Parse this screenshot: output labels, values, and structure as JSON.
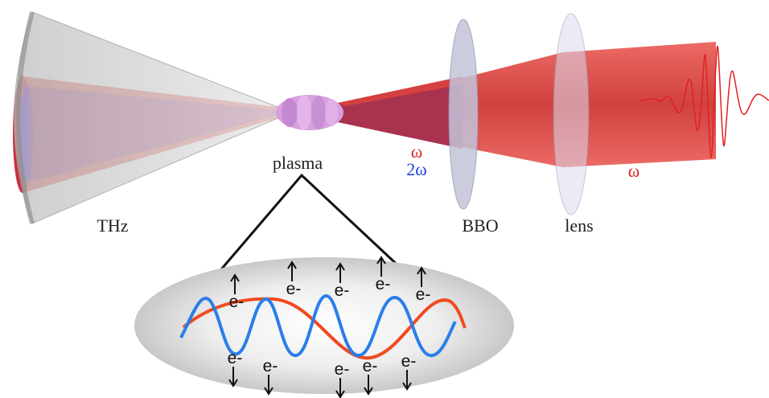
{
  "labels": {
    "thz": "THz",
    "plasma": "plasma",
    "omega_left": "ω",
    "two_omega": "2ω",
    "bbo": "BBO",
    "lens": "lens",
    "omega_right": "ω"
  },
  "electrons": {
    "top": [
      "e-",
      "e-",
      "e-",
      "e-",
      "e-"
    ],
    "bottom": [
      "e-",
      "e-",
      "e-",
      "e-",
      "e-"
    ]
  }
}
